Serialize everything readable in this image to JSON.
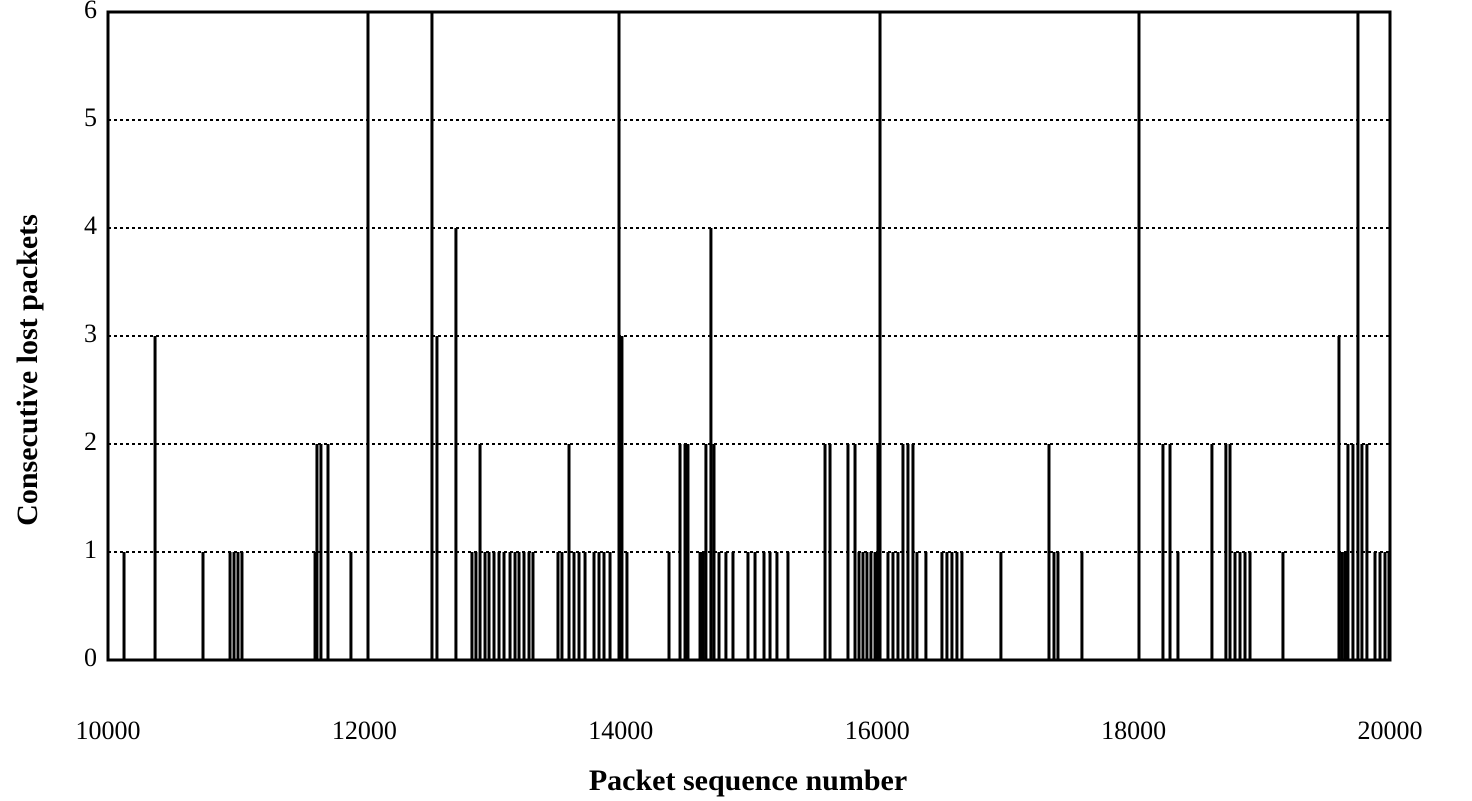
{
  "chart_data": {
    "type": "bar",
    "xlabel": "Packet sequence number",
    "ylabel": "Consecutive lost packets",
    "color": "#000000",
    "grid": true,
    "xlim": [
      10000,
      20000
    ],
    "xticks": [
      10000,
      12000,
      14000,
      16000,
      18000,
      20000
    ],
    "ylim": [
      0,
      6
    ],
    "yticks": [
      0,
      1,
      2,
      3,
      4,
      5,
      6
    ],
    "x": [
      10125,
      10367,
      10741,
      10952,
      10983,
      11014,
      11045,
      11615,
      11630,
      11661,
      11716,
      11895,
      12028,
      12527,
      12566,
      12714,
      12839,
      12870,
      12902,
      12941,
      12972,
      13011,
      13050,
      13089,
      13136,
      13175,
      13206,
      13245,
      13284,
      13315,
      13510,
      13541,
      13596,
      13635,
      13674,
      13721,
      13791,
      13830,
      13869,
      13916,
      13986,
      14009,
      14048,
      14376,
      14462,
      14501,
      14524,
      14618,
      14641,
      14664,
      14703,
      14727,
      14766,
      14820,
      14875,
      14992,
      15047,
      15117,
      15164,
      15218,
      15304,
      15593,
      15632,
      15772,
      15827,
      15858,
      15889,
      15920,
      15951,
      15983,
      16006,
      16022,
      16084,
      16123,
      16162,
      16201,
      16240,
      16279,
      16310,
      16380,
      16505,
      16544,
      16583,
      16622,
      16661,
      16965,
      17340,
      17379,
      17410,
      17597,
      18042,
      18229,
      18284,
      18346,
      18611,
      18720,
      18752,
      18791,
      18830,
      18869,
      18908,
      19165,
      19602,
      19625,
      19649,
      19672,
      19711,
      19750,
      19781,
      19820,
      19883,
      19922,
      19961,
      19992
    ],
    "values": [
      1,
      3,
      1,
      1,
      1,
      1,
      1,
      1,
      2,
      2,
      2,
      1,
      6,
      6,
      3,
      4,
      1,
      1,
      2,
      1,
      1,
      1,
      1,
      1,
      1,
      1,
      1,
      1,
      1,
      1,
      1,
      1,
      2,
      1,
      1,
      1,
      1,
      1,
      1,
      1,
      6,
      3,
      1,
      1,
      2,
      2,
      2,
      1,
      1,
      2,
      4,
      2,
      1,
      1,
      1,
      1,
      1,
      1,
      1,
      1,
      1,
      2,
      2,
      2,
      2,
      1,
      1,
      1,
      1,
      1,
      2,
      6,
      1,
      1,
      1,
      2,
      2,
      2,
      1,
      1,
      1,
      1,
      1,
      1,
      1,
      1,
      2,
      1,
      1,
      1,
      6,
      2,
      2,
      1,
      2,
      2,
      2,
      1,
      1,
      1,
      1,
      1,
      3,
      1,
      1,
      2,
      2,
      6,
      2,
      2,
      1,
      1,
      1,
      1
    ]
  }
}
